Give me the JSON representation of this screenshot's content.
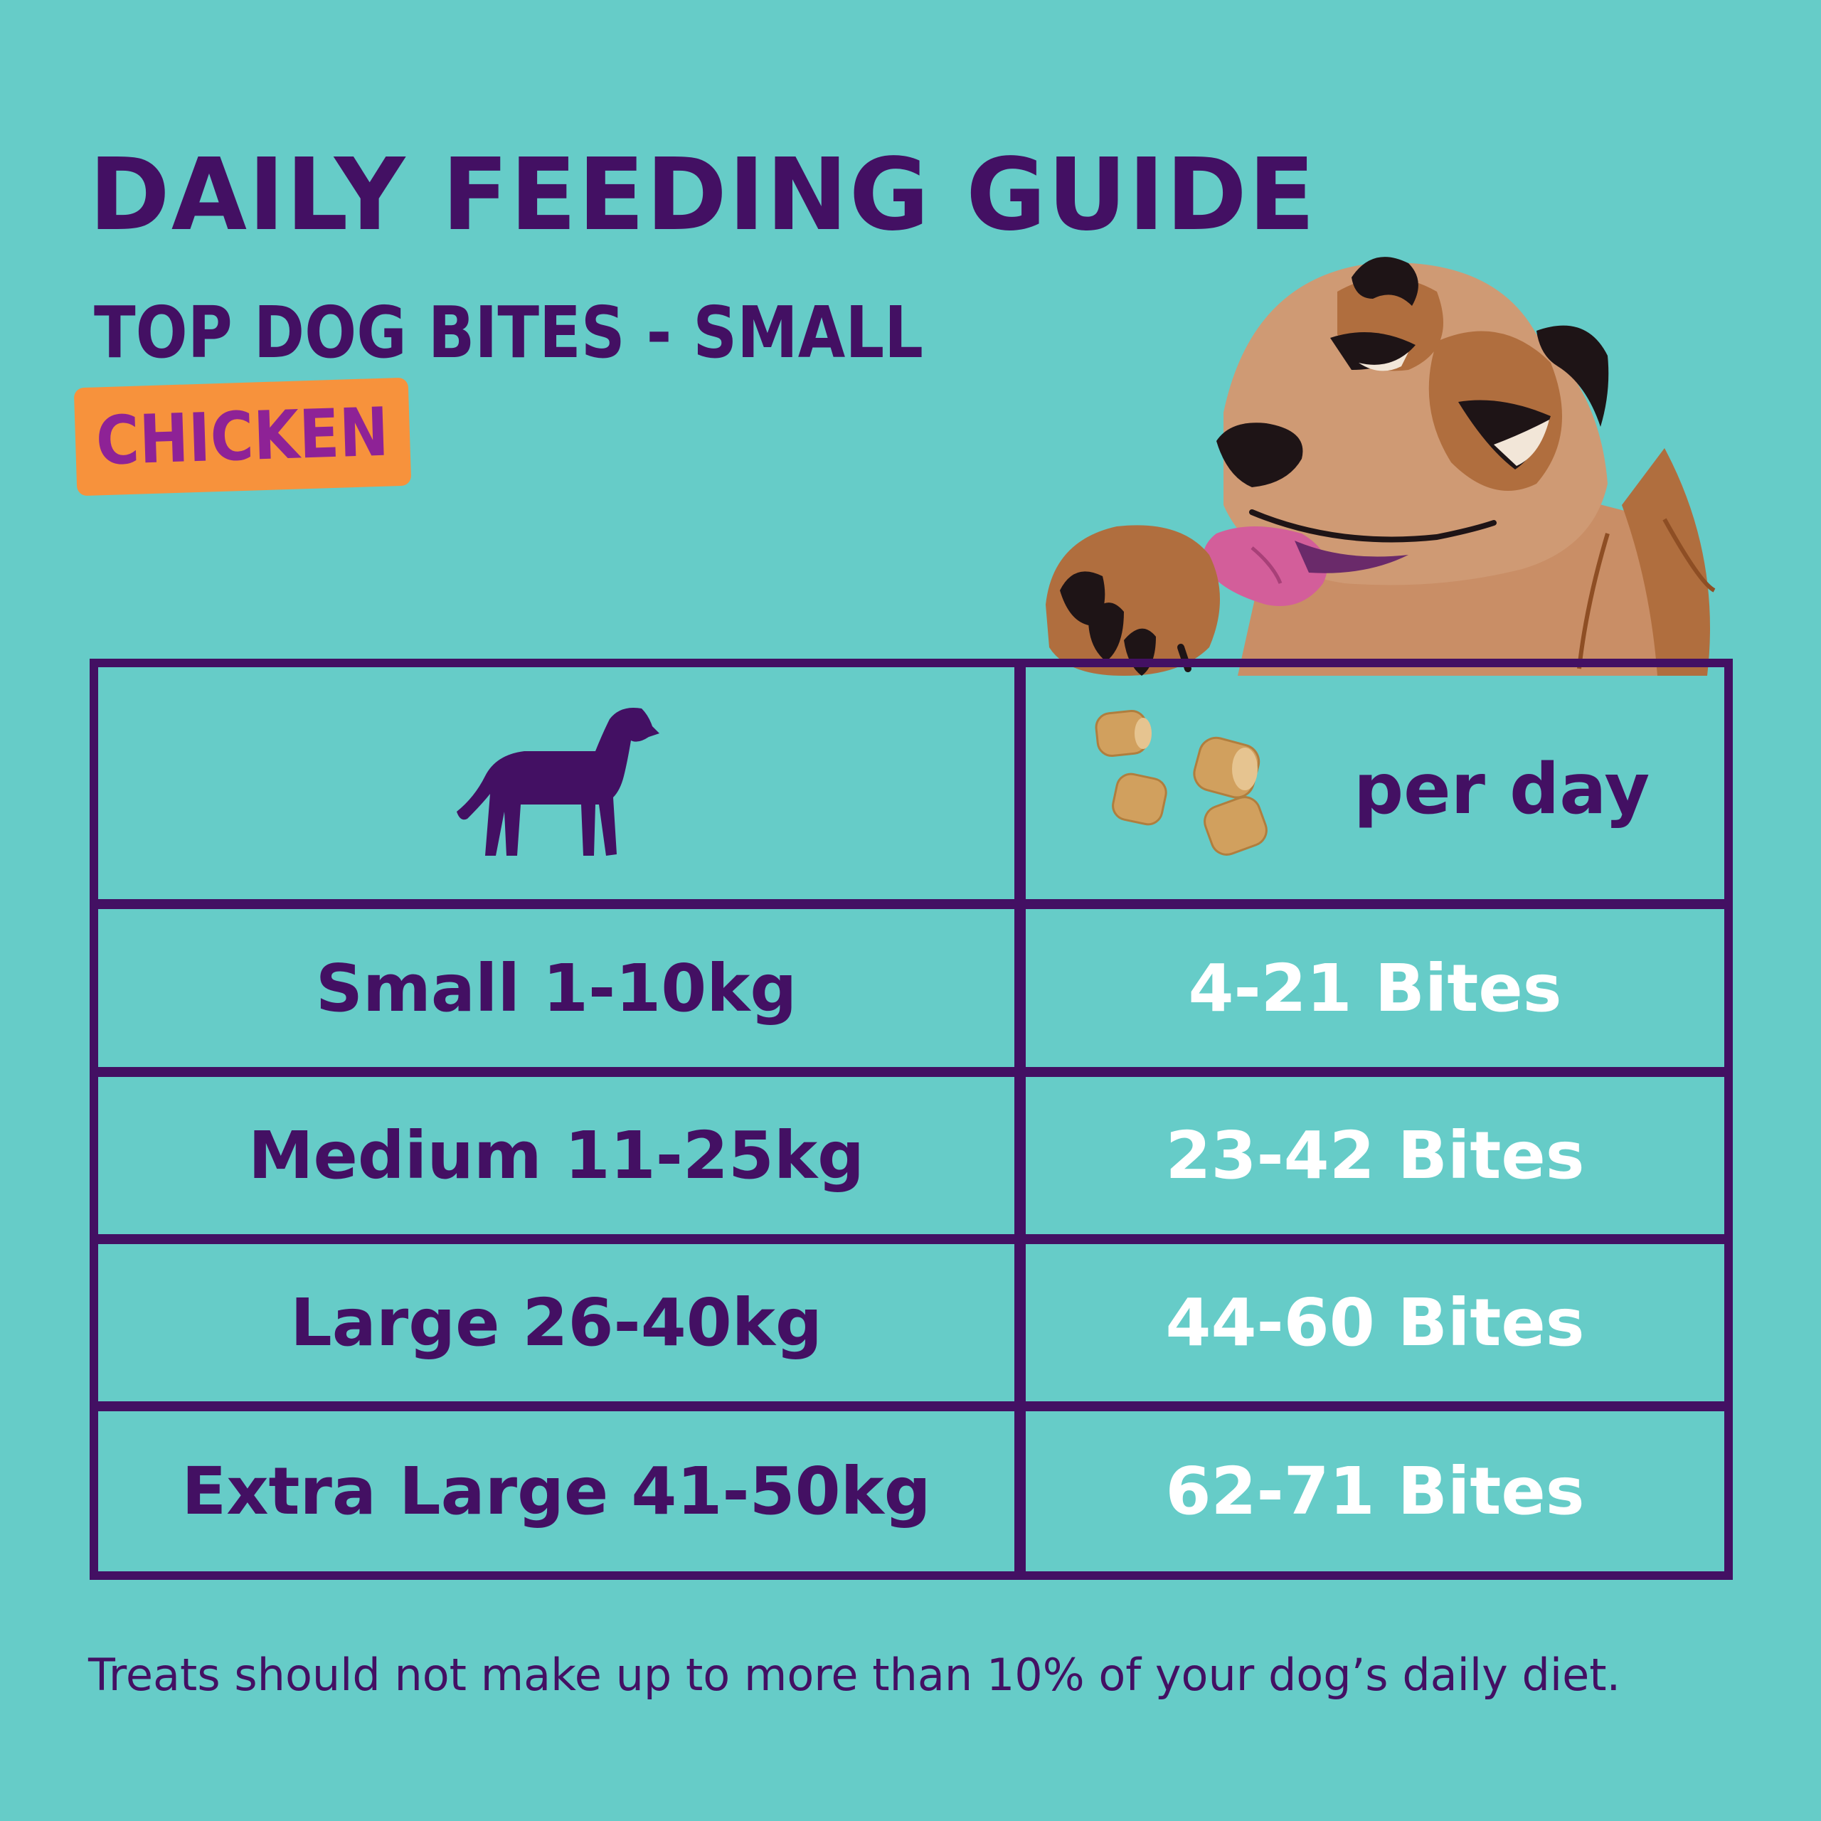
{
  "colors": {
    "background": "#66CCC8",
    "primary_purple": "#431063",
    "flavor_tag_bg": "#F7923C",
    "flavor_tag_text": "#8E2296",
    "bites_text": "#FFFFFF"
  },
  "header": {
    "title": "DAILY FEEDING GUIDE",
    "subtitle": "TOP DOG BITES - SMALL",
    "flavor_tag": "CHICKEN"
  },
  "table": {
    "header": {
      "left_icon": "dog-silhouette-icon",
      "right_icon": "treat-bites-icon",
      "right_label": "per day"
    },
    "rows": [
      {
        "size": "Small 1-10kg",
        "bites": "4-21 Bites"
      },
      {
        "size": "Medium 11-25kg",
        "bites": "23-42 Bites"
      },
      {
        "size": "Large 26-40kg",
        "bites": "44-60 Bites"
      },
      {
        "size": "Extra Large 41-50kg",
        "bites": "62-71 Bites"
      }
    ]
  },
  "footnote": "Treats should not make up to more than 10% of your dog’s daily diet."
}
